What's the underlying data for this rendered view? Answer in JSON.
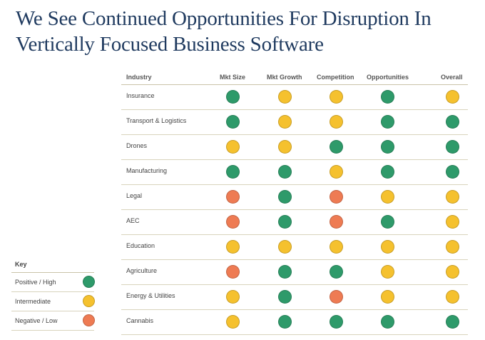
{
  "title": {
    "line1": "We See Continued Opportunities For Disruption In",
    "line2": "Vertically Focused Business Software"
  },
  "colors": {
    "green": "#2e9a6a",
    "yellow": "#f5c12e",
    "red": "#ee7b53"
  },
  "table": {
    "headers": [
      "Industry",
      "Mkt Size",
      "Mkt Growth",
      "Competition",
      "Opportunities",
      "Overall"
    ],
    "rows": [
      {
        "industry": "Insurance",
        "ratings": [
          "green",
          "yellow",
          "yellow",
          "green",
          "yellow"
        ]
      },
      {
        "industry": "Transport & Logistics",
        "ratings": [
          "green",
          "yellow",
          "yellow",
          "green",
          "green"
        ]
      },
      {
        "industry": "Drones",
        "ratings": [
          "yellow",
          "yellow",
          "green",
          "green",
          "green"
        ]
      },
      {
        "industry": "Manufacturing",
        "ratings": [
          "green",
          "green",
          "yellow",
          "green",
          "green"
        ]
      },
      {
        "industry": "Legal",
        "ratings": [
          "red",
          "green",
          "red",
          "yellow",
          "yellow"
        ]
      },
      {
        "industry": "AEC",
        "ratings": [
          "red",
          "green",
          "red",
          "green",
          "yellow"
        ]
      },
      {
        "industry": "Education",
        "ratings": [
          "yellow",
          "yellow",
          "yellow",
          "yellow",
          "yellow"
        ]
      },
      {
        "industry": "Agriculture",
        "ratings": [
          "red",
          "green",
          "green",
          "yellow",
          "yellow"
        ]
      },
      {
        "industry": "Energy & Utilities",
        "ratings": [
          "yellow",
          "green",
          "red",
          "yellow",
          "yellow"
        ]
      },
      {
        "industry": "Cannabis",
        "ratings": [
          "yellow",
          "green",
          "green",
          "green",
          "green"
        ]
      }
    ]
  },
  "key": {
    "title": "Key",
    "items": [
      {
        "label": "Positive / High",
        "rating": "green"
      },
      {
        "label": "Intermediate",
        "rating": "yellow"
      },
      {
        "label": "Negative / Low",
        "rating": "red"
      }
    ]
  }
}
